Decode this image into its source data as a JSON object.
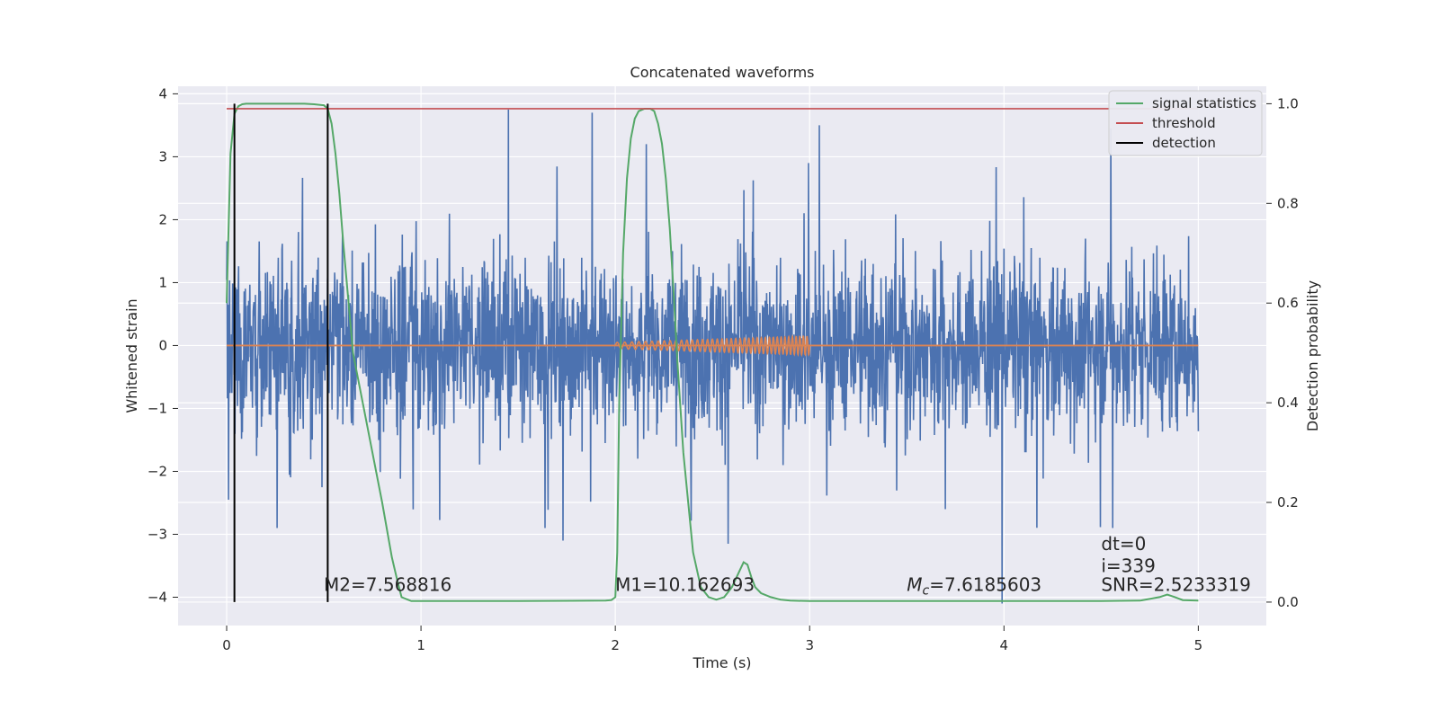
{
  "chart_data": {
    "type": "line",
    "title": "Concatenated waveforms",
    "xlabel": "Time (s)",
    "ylabel": "Whitened strain",
    "y2label": "Detection probability",
    "xlim": [
      -0.25,
      5.35
    ],
    "ylim": [
      -4.45,
      4.12
    ],
    "y2lim": [
      -0.047,
      1.035
    ],
    "xticks": [
      0,
      1,
      2,
      3,
      4,
      5
    ],
    "yticks": [
      -4,
      -3,
      -2,
      -1,
      0,
      1,
      2,
      3,
      4
    ],
    "y2ticks": [
      0.0,
      0.2,
      0.4,
      0.6,
      0.8,
      1.0
    ],
    "grid": true,
    "legend_placement": "top-right",
    "colors": {
      "strain": "#4c72b0",
      "template": "#dd8452",
      "signal_statistics": "#55a868",
      "threshold": "#c44e52",
      "detection": "#000000",
      "background": "#eaeaf2"
    },
    "strain": {
      "x_range": [
        0,
        5
      ],
      "typical_envelope": [
        -1.0,
        1.0
      ],
      "spikes": [
        {
          "x": 1.45,
          "y": 3.75
        },
        {
          "x": 1.88,
          "y": 3.7
        },
        {
          "x": 2.16,
          "y": 3.2
        },
        {
          "x": 2.58,
          "y": -3.15
        },
        {
          "x": 3.05,
          "y": 3.5
        },
        {
          "x": 3.99,
          "y": -4.1
        },
        {
          "x": 4.56,
          "y": -2.9
        },
        {
          "x": 4.55,
          "y": 3.45
        },
        {
          "x": 1.73,
          "y": -3.1
        },
        {
          "x": 0.01,
          "y": -2.45
        },
        {
          "x": 1.63,
          "y": -0.35
        }
      ]
    },
    "template": {
      "x_range": [
        2.0,
        3.0
      ],
      "amplitude_start": 0.05,
      "amplitude_end": 0.15,
      "cycles": 40
    },
    "signal_statistics": {
      "x": [
        0.0,
        0.02,
        0.04,
        0.06,
        0.08,
        0.1,
        0.15,
        0.2,
        0.3,
        0.4,
        0.45,
        0.5,
        0.52,
        0.54,
        0.56,
        0.58,
        0.6,
        0.65,
        0.7,
        0.75,
        0.8,
        0.85,
        0.88,
        0.9,
        0.95,
        1.0,
        1.5,
        1.95,
        1.98,
        2.0,
        2.01,
        2.02,
        2.04,
        2.06,
        2.08,
        2.1,
        2.12,
        2.15,
        2.18,
        2.2,
        2.22,
        2.24,
        2.26,
        2.28,
        2.3,
        2.32,
        2.35,
        2.4,
        2.44,
        2.48,
        2.52,
        2.56,
        2.6,
        2.63,
        2.66,
        2.68,
        2.7,
        2.72,
        2.75,
        2.8,
        2.85,
        2.9,
        3.0,
        3.5,
        4.0,
        4.5,
        4.7,
        4.8,
        4.84,
        4.88,
        4.92,
        5.0
      ],
      "y": [
        0.6,
        0.9,
        0.98,
        0.995,
        0.999,
        1.0,
        1.0,
        1.0,
        1.0,
        1.0,
        0.999,
        0.997,
        0.99,
        0.96,
        0.9,
        0.82,
        0.72,
        0.5,
        0.4,
        0.3,
        0.2,
        0.09,
        0.04,
        0.01,
        0.002,
        0.002,
        0.002,
        0.003,
        0.004,
        0.01,
        0.1,
        0.4,
        0.7,
        0.85,
        0.93,
        0.97,
        0.985,
        0.99,
        0.99,
        0.985,
        0.96,
        0.92,
        0.85,
        0.75,
        0.62,
        0.48,
        0.3,
        0.1,
        0.03,
        0.01,
        0.005,
        0.01,
        0.03,
        0.055,
        0.08,
        0.075,
        0.05,
        0.03,
        0.018,
        0.01,
        0.005,
        0.003,
        0.002,
        0.002,
        0.002,
        0.002,
        0.003,
        0.01,
        0.015,
        0.01,
        0.004,
        0.003
      ]
    },
    "threshold": {
      "y2": 0.99,
      "x_range": [
        0,
        5
      ]
    },
    "detections": [
      0.04,
      0.52
    ],
    "annotations": [
      {
        "text": "M2=7.568816",
        "x": 0.5,
        "y": -3.9
      },
      {
        "text": "M1=10.162693",
        "x": 2.0,
        "y": -3.9
      },
      {
        "text_prefix": "M",
        "text_sub": "c",
        "text_suffix": "=7.6185603",
        "x": 3.5,
        "y": -3.9
      },
      {
        "text": "dt=0",
        "x": 4.5,
        "y": -3.25
      },
      {
        "text": "i=339",
        "x": 4.5,
        "y": -3.6
      },
      {
        "text": "SNR=2.5233319",
        "x": 4.5,
        "y": -3.9
      }
    ],
    "legend": [
      "signal statistics",
      "threshold",
      "detection"
    ]
  }
}
